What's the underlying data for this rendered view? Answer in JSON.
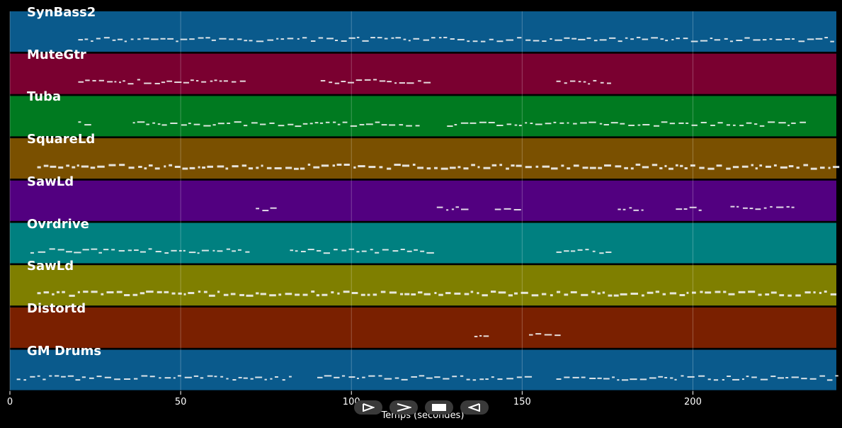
{
  "tracks": [
    {
      "name": "SynBass2",
      "color": "#0a5a8c"
    },
    {
      "name": "MuteGtr",
      "color": "#7a0030"
    },
    {
      "name": "Tuba",
      "color": "#007a20"
    },
    {
      "name": "SquareLd",
      "color": "#7a5000"
    },
    {
      "name": "SawLd",
      "color": "#520080"
    },
    {
      "name": "Ovrdrive",
      "color": "#008080"
    },
    {
      "name": "SawLd",
      "color": "#7f7f00"
    },
    {
      "name": "Distortd",
      "color": "#7a2000"
    },
    {
      "name": "GM Drums",
      "color": "#0a5a8c"
    }
  ],
  "axis": {
    "xlabel": "Temps (secondes)",
    "xlim": [
      0,
      242
    ],
    "ticks": [
      0,
      50,
      100,
      150,
      200
    ],
    "tick_labels": [
      "0",
      "50",
      "100",
      "150",
      "200"
    ],
    "grid": true
  },
  "transport": {
    "play_icon": "play-icon",
    "forward_icon": "forward-icon",
    "stop_icon": "stop-icon",
    "back_icon": "back-icon"
  }
}
